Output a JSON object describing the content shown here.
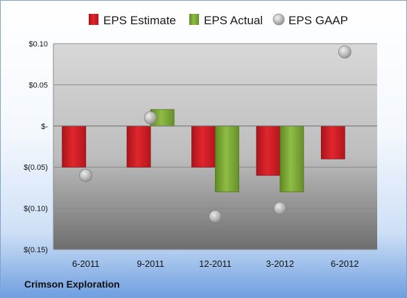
{
  "company": "Crimson Exploration",
  "colors": {
    "estimate": "#d42028",
    "actual": "#7ea63a",
    "gaap": "#b0b0b0"
  },
  "chart_data": {
    "type": "bar",
    "categories": [
      "6-2011",
      "9-2011",
      "12-2011",
      "3-2012",
      "6-2012"
    ],
    "series": [
      {
        "name": "EPS Estimate",
        "kind": "bar",
        "values": [
          -0.05,
          -0.05,
          -0.05,
          -0.06,
          -0.04
        ]
      },
      {
        "name": "EPS Actual",
        "kind": "bar",
        "values": [
          null,
          0.02,
          -0.08,
          -0.08,
          null
        ]
      },
      {
        "name": "EPS GAAP",
        "kind": "scatter",
        "values": [
          -0.06,
          0.01,
          -0.11,
          -0.1,
          0.09
        ]
      }
    ],
    "ylim": [
      -0.15,
      0.1
    ],
    "yticks": [
      {
        "value": 0.1,
        "label": "$0.10"
      },
      {
        "value": 0.05,
        "label": "$0.05"
      },
      {
        "value": 0,
        "label": "$-"
      },
      {
        "value": -0.05,
        "label": "$(0.05)"
      },
      {
        "value": -0.1,
        "label": "$(0.10)"
      },
      {
        "value": -0.15,
        "label": "$(0.15)"
      }
    ],
    "grid": true,
    "legend_position": "top"
  }
}
